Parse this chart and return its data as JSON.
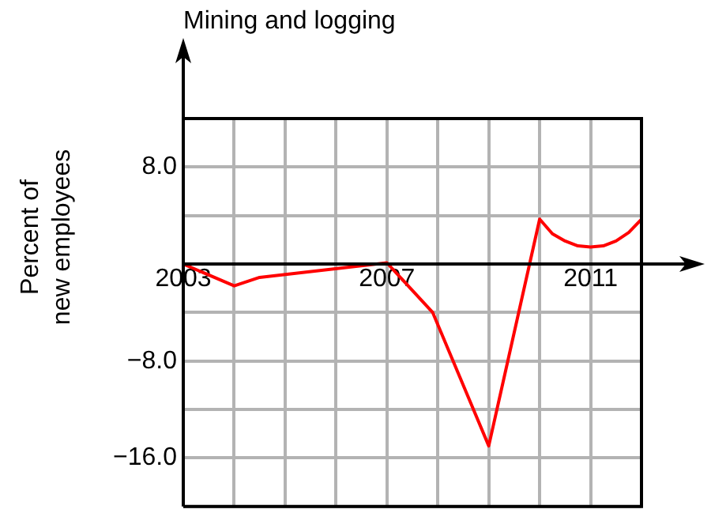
{
  "chart_data": {
    "type": "line",
    "title": "Mining and logging",
    "ylabel": "Percent of\nnew employees",
    "x": [
      2003,
      2004,
      2004.5,
      2007,
      2007.9,
      2009,
      2010,
      2010.25,
      2010.5,
      2010.75,
      2011,
      2011.25,
      2011.5,
      2011.75,
      2012
    ],
    "series": [
      {
        "color": "#ff0000",
        "values": [
          0,
          -1.8,
          -1.1,
          0.1,
          -4,
          -15,
          3.7,
          2.5,
          1.9,
          1.5,
          1.4,
          1.5,
          1.9,
          2.6,
          3.7
        ]
      }
    ],
    "xlim": [
      2003,
      2012
    ],
    "xticks": [
      2003,
      {
        "value": 2004,
        "label": null
      },
      {
        "value": 2005,
        "label": null
      },
      {
        "value": 2006,
        "label": null
      },
      2007,
      {
        "value": 2008,
        "label": null
      },
      {
        "value": 2009,
        "label": null
      },
      {
        "value": 2010,
        "label": null
      },
      2011,
      {
        "value": 2012,
        "label": null
      }
    ],
    "ylim": [
      -20,
      12
    ],
    "yticks": [
      {
        "value": -20,
        "label": null
      },
      {
        "value": -16,
        "label": "−16.0"
      },
      {
        "value": -12,
        "label": null
      },
      {
        "value": -8,
        "label": "−8.0"
      },
      {
        "value": -4,
        "label": null
      },
      {
        "value": 0,
        "label": null
      },
      {
        "value": 4,
        "label": null
      },
      {
        "value": 8,
        "label": "8.0"
      },
      {
        "value": 12,
        "label": null
      }
    ],
    "grid": true,
    "legend": false,
    "marker": "none",
    "line_style": "solid"
  }
}
